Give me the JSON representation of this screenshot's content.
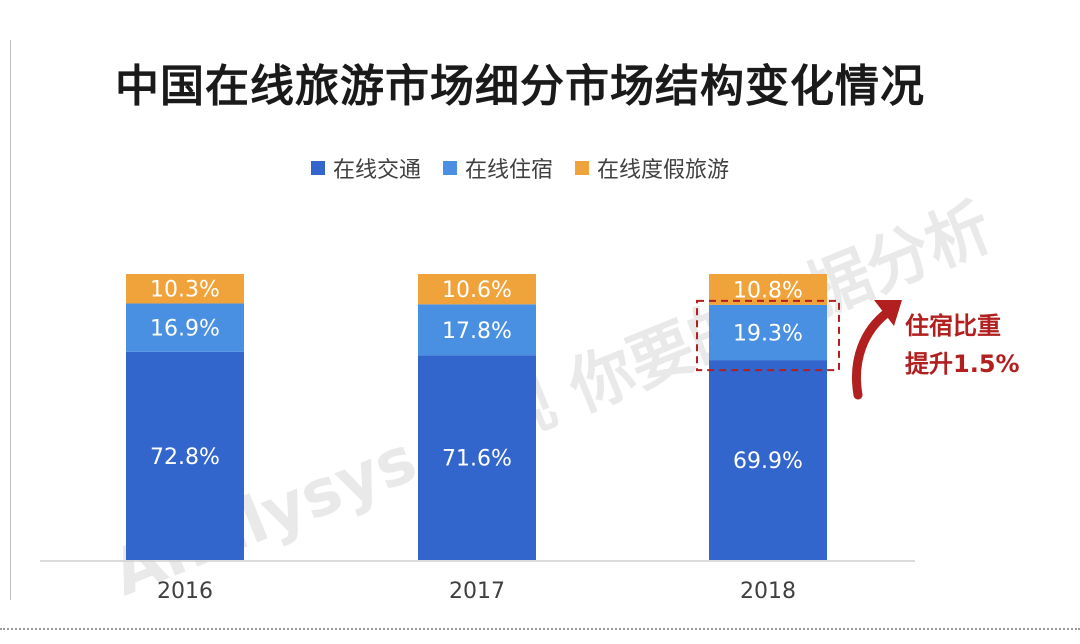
{
  "title": "中国在线旅游市场细分市场结构变化情况",
  "colors": {
    "transport": "#3366cc",
    "lodging": "#4a90e2",
    "vacation": "#f0a33a",
    "callout": "#b11f1f",
    "axis": "#cfcfcf"
  },
  "chart_data": {
    "type": "bar",
    "stacked": true,
    "categories": [
      "2016",
      "2017",
      "2018"
    ],
    "series": [
      {
        "name": "在线交通",
        "values": [
          72.8,
          71.6,
          69.9
        ]
      },
      {
        "name": "在线住宿",
        "values": [
          16.9,
          17.8,
          19.3
        ]
      },
      {
        "name": "在线度假旅游",
        "values": [
          10.3,
          10.6,
          10.8
        ]
      }
    ],
    "value_unit": "%",
    "ylim": [
      0,
      100
    ],
    "legend": "top-center",
    "grid": false
  },
  "annotation": {
    "line1": "住宿比重",
    "line2": "提升1.5%"
  },
  "watermark": "Analysys 易观 你要的数据分析"
}
